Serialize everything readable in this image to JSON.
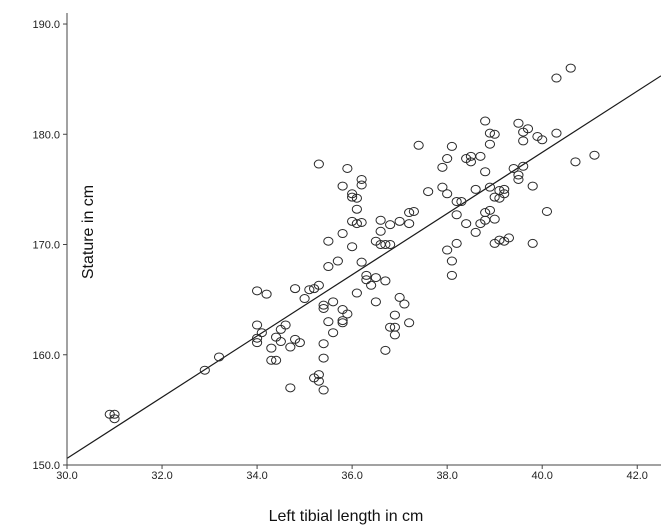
{
  "chart_data": {
    "type": "scatter",
    "title": "",
    "xlabel": "Left tibial length in cm",
    "ylabel": "Stature in cm",
    "xlim": [
      30.0,
      42.5
    ],
    "ylim": [
      150.0,
      191.0
    ],
    "x_ticks": [
      "30.0",
      "32.0",
      "34.0",
      "36.0",
      "38.0",
      "40.0",
      "42.0"
    ],
    "y_ticks": [
      "150.0",
      "160.0",
      "170.0",
      "180.0",
      "190.0"
    ],
    "grid": false,
    "legend": "none",
    "marker": "open-circle",
    "colors": {
      "marker": "#2a2a2a",
      "fit_line": "#1a1a1a",
      "axes": "#444444"
    },
    "fit_line": {
      "x": [
        30.0,
        42.5
      ],
      "y": [
        150.6,
        185.3
      ]
    },
    "points": [
      {
        "x": 30.9,
        "y": 154.6
      },
      {
        "x": 31.0,
        "y": 154.6
      },
      {
        "x": 31.0,
        "y": 154.2
      },
      {
        "x": 32.9,
        "y": 158.6
      },
      {
        "x": 33.2,
        "y": 159.8
      },
      {
        "x": 34.0,
        "y": 165.8
      },
      {
        "x": 34.0,
        "y": 162.7
      },
      {
        "x": 34.0,
        "y": 161.5
      },
      {
        "x": 34.0,
        "y": 161.1
      },
      {
        "x": 34.1,
        "y": 162.0
      },
      {
        "x": 34.2,
        "y": 165.5
      },
      {
        "x": 34.3,
        "y": 159.5
      },
      {
        "x": 34.4,
        "y": 159.5
      },
      {
        "x": 34.3,
        "y": 160.6
      },
      {
        "x": 34.4,
        "y": 161.6
      },
      {
        "x": 34.5,
        "y": 162.3
      },
      {
        "x": 34.5,
        "y": 161.2
      },
      {
        "x": 34.6,
        "y": 162.7
      },
      {
        "x": 34.7,
        "y": 160.7
      },
      {
        "x": 34.7,
        "y": 157.0
      },
      {
        "x": 34.8,
        "y": 161.4
      },
      {
        "x": 34.8,
        "y": 166.0
      },
      {
        "x": 34.9,
        "y": 161.1
      },
      {
        "x": 35.0,
        "y": 165.1
      },
      {
        "x": 35.1,
        "y": 165.9
      },
      {
        "x": 35.2,
        "y": 166.0
      },
      {
        "x": 35.2,
        "y": 157.9
      },
      {
        "x": 35.3,
        "y": 158.2
      },
      {
        "x": 35.3,
        "y": 157.6
      },
      {
        "x": 35.4,
        "y": 156.8
      },
      {
        "x": 35.3,
        "y": 166.3
      },
      {
        "x": 35.3,
        "y": 177.3
      },
      {
        "x": 35.4,
        "y": 164.5
      },
      {
        "x": 35.4,
        "y": 164.2
      },
      {
        "x": 35.4,
        "y": 159.7
      },
      {
        "x": 35.4,
        "y": 161.0
      },
      {
        "x": 35.5,
        "y": 163.0
      },
      {
        "x": 35.5,
        "y": 168.0
      },
      {
        "x": 35.5,
        "y": 170.3
      },
      {
        "x": 35.6,
        "y": 162.0
      },
      {
        "x": 35.6,
        "y": 164.8
      },
      {
        "x": 35.7,
        "y": 168.5
      },
      {
        "x": 35.8,
        "y": 163.1
      },
      {
        "x": 35.8,
        "y": 162.9
      },
      {
        "x": 35.8,
        "y": 164.1
      },
      {
        "x": 35.8,
        "y": 171.0
      },
      {
        "x": 35.8,
        "y": 175.3
      },
      {
        "x": 35.9,
        "y": 176.9
      },
      {
        "x": 35.9,
        "y": 163.7
      },
      {
        "x": 36.0,
        "y": 174.6
      },
      {
        "x": 36.0,
        "y": 174.3
      },
      {
        "x": 36.0,
        "y": 172.1
      },
      {
        "x": 36.0,
        "y": 169.8
      },
      {
        "x": 36.1,
        "y": 173.2
      },
      {
        "x": 36.1,
        "y": 171.9
      },
      {
        "x": 36.1,
        "y": 165.6
      },
      {
        "x": 36.1,
        "y": 174.2
      },
      {
        "x": 36.2,
        "y": 175.9
      },
      {
        "x": 36.2,
        "y": 175.4
      },
      {
        "x": 36.2,
        "y": 168.4
      },
      {
        "x": 36.2,
        "y": 172.0
      },
      {
        "x": 36.3,
        "y": 167.2
      },
      {
        "x": 36.3,
        "y": 166.8
      },
      {
        "x": 36.4,
        "y": 166.3
      },
      {
        "x": 36.5,
        "y": 170.3
      },
      {
        "x": 36.5,
        "y": 164.8
      },
      {
        "x": 36.5,
        "y": 167.0
      },
      {
        "x": 36.6,
        "y": 170.0
      },
      {
        "x": 36.6,
        "y": 172.2
      },
      {
        "x": 36.6,
        "y": 171.2
      },
      {
        "x": 36.7,
        "y": 170.0
      },
      {
        "x": 36.7,
        "y": 166.7
      },
      {
        "x": 36.7,
        "y": 160.4
      },
      {
        "x": 36.8,
        "y": 170.0
      },
      {
        "x": 36.8,
        "y": 162.5
      },
      {
        "x": 36.8,
        "y": 171.8
      },
      {
        "x": 36.9,
        "y": 163.6
      },
      {
        "x": 36.9,
        "y": 161.8
      },
      {
        "x": 36.9,
        "y": 162.5
      },
      {
        "x": 37.0,
        "y": 172.1
      },
      {
        "x": 37.0,
        "y": 165.2
      },
      {
        "x": 37.1,
        "y": 164.6
      },
      {
        "x": 37.2,
        "y": 172.9
      },
      {
        "x": 37.2,
        "y": 162.9
      },
      {
        "x": 37.2,
        "y": 171.9
      },
      {
        "x": 37.3,
        "y": 173.0
      },
      {
        "x": 37.4,
        "y": 179.0
      },
      {
        "x": 37.6,
        "y": 174.8
      },
      {
        "x": 37.9,
        "y": 175.2
      },
      {
        "x": 37.9,
        "y": 177.0
      },
      {
        "x": 38.0,
        "y": 169.5
      },
      {
        "x": 38.0,
        "y": 174.6
      },
      {
        "x": 38.0,
        "y": 177.8
      },
      {
        "x": 38.1,
        "y": 178.9
      },
      {
        "x": 38.1,
        "y": 168.5
      },
      {
        "x": 38.1,
        "y": 167.2
      },
      {
        "x": 38.2,
        "y": 173.9
      },
      {
        "x": 38.2,
        "y": 170.1
      },
      {
        "x": 38.2,
        "y": 172.7
      },
      {
        "x": 38.3,
        "y": 173.9
      },
      {
        "x": 38.4,
        "y": 171.9
      },
      {
        "x": 38.4,
        "y": 177.8
      },
      {
        "x": 38.5,
        "y": 178.0
      },
      {
        "x": 38.5,
        "y": 177.5
      },
      {
        "x": 38.6,
        "y": 175.0
      },
      {
        "x": 38.6,
        "y": 171.1
      },
      {
        "x": 38.7,
        "y": 178.0
      },
      {
        "x": 38.7,
        "y": 171.9
      },
      {
        "x": 38.8,
        "y": 181.2
      },
      {
        "x": 38.8,
        "y": 176.6
      },
      {
        "x": 38.8,
        "y": 172.2
      },
      {
        "x": 38.8,
        "y": 172.9
      },
      {
        "x": 38.9,
        "y": 180.1
      },
      {
        "x": 38.9,
        "y": 179.1
      },
      {
        "x": 38.9,
        "y": 175.2
      },
      {
        "x": 38.9,
        "y": 173.1
      },
      {
        "x": 39.0,
        "y": 180.0
      },
      {
        "x": 39.0,
        "y": 174.3
      },
      {
        "x": 39.0,
        "y": 172.3
      },
      {
        "x": 39.0,
        "y": 170.1
      },
      {
        "x": 39.1,
        "y": 174.2
      },
      {
        "x": 39.1,
        "y": 174.9
      },
      {
        "x": 39.1,
        "y": 170.4
      },
      {
        "x": 39.2,
        "y": 175.0
      },
      {
        "x": 39.2,
        "y": 170.3
      },
      {
        "x": 39.2,
        "y": 174.6
      },
      {
        "x": 39.3,
        "y": 170.6
      },
      {
        "x": 39.4,
        "y": 176.9
      },
      {
        "x": 39.5,
        "y": 181.0
      },
      {
        "x": 39.5,
        "y": 176.3
      },
      {
        "x": 39.5,
        "y": 175.9
      },
      {
        "x": 39.6,
        "y": 180.2
      },
      {
        "x": 39.6,
        "y": 179.4
      },
      {
        "x": 39.6,
        "y": 177.1
      },
      {
        "x": 39.7,
        "y": 180.5
      },
      {
        "x": 39.8,
        "y": 175.3
      },
      {
        "x": 39.8,
        "y": 170.1
      },
      {
        "x": 39.9,
        "y": 179.8
      },
      {
        "x": 40.0,
        "y": 179.5
      },
      {
        "x": 40.1,
        "y": 173.0
      },
      {
        "x": 40.3,
        "y": 180.1
      },
      {
        "x": 40.3,
        "y": 185.1
      },
      {
        "x": 40.6,
        "y": 186.0
      },
      {
        "x": 40.7,
        "y": 177.5
      },
      {
        "x": 41.1,
        "y": 178.1
      }
    ]
  }
}
